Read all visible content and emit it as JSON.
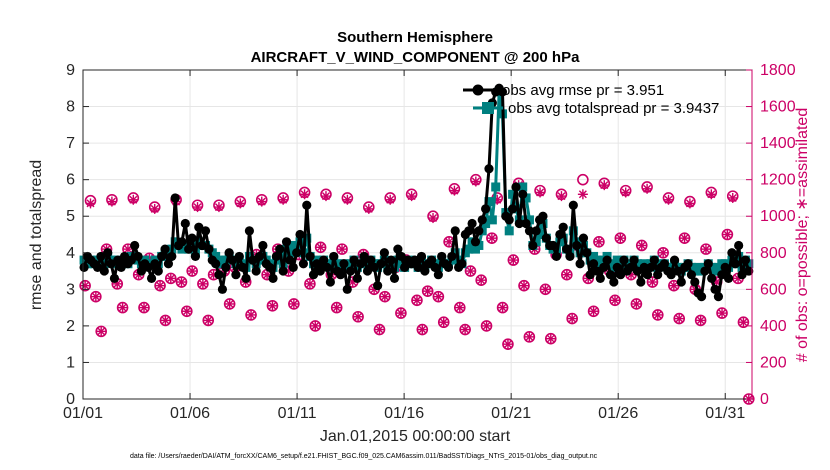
{
  "chart_data": {
    "type": "line",
    "title": "Southern Hemisphere",
    "subtitle": "AIRCRAFT_V_WIND_COMPONENT @ 200 hPa",
    "xlabel": "Jan.01,2015 00:00:00 start",
    "ylabel": "rmse and totalspread",
    "ylabel_right": "# of obs: o=possible; ∗=assimilated",
    "footnote": "data file: /Users/raeder/DAI/ATM_forcXX/CAM6_setup/f.e21.FHIST_BGC.f09_025.CAM6assim.011/BadSST/Diags_NTrS_2015-01/obs_diag_output.nc",
    "xlim": [
      1,
      32.25
    ],
    "ylim": [
      0,
      9
    ],
    "ylim_right": [
      0,
      1800
    ],
    "x_ticks": [
      1,
      6,
      11,
      16,
      21,
      26,
      31
    ],
    "x_tick_labels": [
      "01/01",
      "01/06",
      "01/11",
      "01/16",
      "01/21",
      "01/26",
      "01/31"
    ],
    "y_ticks": [
      "0",
      "1",
      "2",
      "3",
      "4",
      "5",
      "6",
      "7",
      "8",
      "9"
    ],
    "y_right_ticks": [
      "0",
      "200",
      "400",
      "600",
      "800",
      "1000",
      "1200",
      "1400",
      "1600",
      "1800"
    ],
    "grid": true,
    "legend_position": "top-right",
    "colors": {
      "rmse": "#000000",
      "spread": "#008080",
      "obs": "#cc0066",
      "axis": "#262626"
    },
    "series": [
      {
        "name": "obs avg rmse pr = 3.951",
        "color": "#000000",
        "marker": "circle",
        "values": [
          3.6,
          3.9,
          3.8,
          3.7,
          3.6,
          3.9,
          3.5,
          4.0,
          3.7,
          3.3,
          3.8,
          3.6,
          3.9,
          3.7,
          3.8,
          4.2,
          3.9,
          3.5,
          3.7,
          3.6,
          3.3,
          3.7,
          3.5,
          3.9,
          4.1,
          3.7,
          3.9,
          5.5,
          4.2,
          4.3,
          4.8,
          4.1,
          4.4,
          3.9,
          4.7,
          4.2,
          4.6,
          4.1,
          3.8,
          3.7,
          3.4,
          3.0,
          3.6,
          4.0,
          3.8,
          3.4,
          3.9,
          3.6,
          3.3,
          4.6,
          3.8,
          3.5,
          3.9,
          4.2,
          3.7,
          3.6,
          3.3,
          3.9,
          4.1,
          3.5,
          4.3,
          3.8,
          3.6,
          4.0,
          4.5,
          3.7,
          5.3,
          3.9,
          3.4,
          3.7,
          3.5,
          3.8,
          3.6,
          3.2,
          3.9,
          3.5,
          3.4,
          3.7,
          3.0,
          3.5,
          3.8,
          3.3,
          3.7,
          3.9,
          3.5,
          3.8,
          3.6,
          3.1,
          3.7,
          4.0,
          3.5,
          3.8,
          3.3,
          4.1,
          3.9,
          3.6,
          3.8,
          3.7,
          3.8,
          3.6,
          3.9,
          3.5,
          3.7,
          3.8,
          3.6,
          3.4,
          3.9,
          3.7,
          3.6,
          3.9,
          4.6,
          3.6,
          3.7,
          4.5,
          4.6,
          4.8,
          4.3,
          4.6,
          4.9,
          5.2,
          6.3,
          8.1,
          8.4,
          8.5,
          8.4,
          5.0,
          4.9,
          5.2,
          5.8,
          4.8,
          5.6,
          4.8,
          4.6,
          4.2,
          4.6,
          4.9,
          5.0,
          4.4,
          4.2,
          4.2,
          3.9,
          4.5,
          4.7,
          4.1,
          3.9,
          5.3,
          4.2,
          3.7,
          4.4,
          4.0,
          3.4,
          3.7,
          3.5,
          3.3,
          3.6,
          3.8,
          3.4,
          3.2,
          3.6,
          3.4,
          3.8,
          3.5,
          3.6,
          3.8,
          3.5,
          3.2,
          3.6,
          3.4,
          3.6,
          3.8,
          3.4,
          3.6,
          3.7,
          3.5,
          3.4,
          3.8,
          3.5,
          3.2,
          3.6,
          3.7,
          3.4,
          3.2,
          2.9,
          2.8,
          3.5,
          3.7,
          3.3,
          3.0,
          2.8,
          3.4,
          3.6,
          3.3,
          4.0,
          3.7,
          4.2,
          3.4,
          3.8,
          3.5
        ]
      },
      {
        "name": "obs avg totalspread pr = 3.9437",
        "color": "#008080",
        "marker": "square",
        "values": [
          3.8,
          3.7,
          3.8,
          3.7,
          3.8,
          3.8,
          3.7,
          3.9,
          3.8,
          3.7,
          3.8,
          3.7,
          3.8,
          3.7,
          3.9,
          3.9,
          3.8,
          3.7,
          3.8,
          3.7,
          3.7,
          3.8,
          3.7,
          3.9,
          4.0,
          3.9,
          4.1,
          4.3,
          4.2,
          4.1,
          4.2,
          4.1,
          4.2,
          4.0,
          4.3,
          4.2,
          4.2,
          4.1,
          4.0,
          3.9,
          3.8,
          3.7,
          3.8,
          3.9,
          3.8,
          3.7,
          3.8,
          3.7,
          3.6,
          3.9,
          3.8,
          3.7,
          3.8,
          3.9,
          3.8,
          3.7,
          3.6,
          3.8,
          3.9,
          3.7,
          4.1,
          4.0,
          4.2,
          4.1,
          4.3,
          4.0,
          4.4,
          3.9,
          3.7,
          3.8,
          3.7,
          3.8,
          3.7,
          3.6,
          3.8,
          3.7,
          3.6,
          3.7,
          3.6,
          3.7,
          3.8,
          3.6,
          3.7,
          3.8,
          3.7,
          3.8,
          3.7,
          3.6,
          3.7,
          3.8,
          3.6,
          3.7,
          3.6,
          3.8,
          3.7,
          3.6,
          3.7,
          3.8,
          3.7,
          3.6,
          3.8,
          3.6,
          3.7,
          3.8,
          3.7,
          3.6,
          3.8,
          3.7,
          3.7,
          3.8,
          4.0,
          3.8,
          3.7,
          4.0,
          4.1,
          4.3,
          4.1,
          4.2,
          4.6,
          4.8,
          5.4,
          4.9,
          5.8,
          8.4,
          7.8,
          5.1,
          4.6,
          5.6,
          5.2,
          4.9,
          5.8,
          5.5,
          4.9,
          4.2,
          4.3,
          4.5,
          4.8,
          4.4,
          4.2,
          4.1,
          4.1,
          4.3,
          4.4,
          4.1,
          4.0,
          4.6,
          4.3,
          4.0,
          4.2,
          4.0,
          3.8,
          3.9,
          3.8,
          3.7,
          3.8,
          3.9,
          3.7,
          3.6,
          3.8,
          3.7,
          3.8,
          3.7,
          3.7,
          3.8,
          3.7,
          3.6,
          3.7,
          3.6,
          3.7,
          3.8,
          3.6,
          3.7,
          3.7,
          3.6,
          3.6,
          3.7,
          3.6,
          3.5,
          3.6,
          3.7,
          3.6,
          3.5,
          3.6,
          3.5,
          3.6,
          3.7,
          3.6,
          3.5,
          3.6,
          3.7,
          3.7,
          3.6,
          3.8,
          3.7,
          3.9,
          3.6,
          3.8,
          3.7
        ]
      }
    ],
    "obs_counts": {
      "name": "# of obs",
      "color": "#cc0066",
      "possible_marker": "circle",
      "assimilated_marker": "asterisk",
      "x": [
        1.1,
        1.35,
        1.6,
        1.85,
        2.1,
        2.35,
        2.6,
        2.85,
        3.1,
        3.35,
        3.6,
        3.85,
        4.1,
        4.35,
        4.6,
        4.85,
        5.1,
        5.35,
        5.6,
        5.85,
        6.1,
        6.35,
        6.6,
        6.85,
        7.1,
        7.35,
        7.6,
        7.85,
        8.1,
        8.35,
        8.6,
        8.85,
        9.1,
        9.35,
        9.6,
        9.85,
        10.1,
        10.35,
        10.6,
        10.85,
        11.1,
        11.35,
        11.6,
        11.85,
        12.1,
        12.35,
        12.6,
        12.85,
        13.1,
        13.35,
        13.6,
        13.85,
        14.1,
        14.35,
        14.6,
        14.85,
        15.1,
        15.35,
        15.6,
        15.85,
        16.1,
        16.35,
        16.6,
        16.85,
        17.1,
        17.35,
        17.6,
        17.85,
        18.1,
        18.35,
        18.6,
        18.85,
        19.1,
        19.35,
        19.6,
        19.85,
        20.1,
        20.35,
        20.6,
        20.85,
        21.1,
        21.35,
        21.6,
        21.85,
        22.1,
        22.35,
        22.6,
        22.85,
        23.1,
        23.35,
        23.6,
        23.85,
        24.1,
        24.35,
        24.6,
        24.85,
        25.1,
        25.35,
        25.6,
        25.85,
        26.1,
        26.35,
        26.6,
        26.85,
        27.1,
        27.35,
        27.6,
        27.85,
        28.1,
        28.35,
        28.6,
        28.85,
        29.1,
        29.35,
        29.6,
        29.85,
        30.1,
        30.35,
        30.6,
        30.85,
        31.1,
        31.35,
        31.6,
        31.85,
        32.1
      ],
      "possible": [
        620,
        1085,
        560,
        370,
        820,
        1090,
        630,
        500,
        820,
        1100,
        680,
        500,
        770,
        1050,
        620,
        430,
        660,
        1090,
        640,
        480,
        700,
        1060,
        630,
        430,
        680,
        1060,
        700,
        520,
        720,
        1080,
        640,
        460,
        790,
        1090,
        680,
        510,
        820,
        1100,
        700,
        520,
        790,
        1130,
        630,
        400,
        830,
        1120,
        680,
        500,
        820,
        1100,
        640,
        450,
        790,
        1050,
        600,
        380,
        560,
        1100,
        720,
        470,
        760,
        1120,
        540,
        380,
        590,
        1000,
        560,
        420,
        860,
        1150,
        500,
        380,
        700,
        1200,
        650,
        400,
        880,
        1100,
        500,
        300,
        760,
        1180,
        620,
        340,
        820,
        1140,
        600,
        330,
        790,
        1120,
        680,
        440,
        840,
        1200,
        660,
        480,
        860,
        1180,
        700,
        540,
        880,
        1140,
        680,
        520,
        840,
        1160,
        640,
        460,
        800,
        1100,
        620,
        440,
        880,
        1080,
        600,
        430,
        820,
        1130,
        640,
        470,
        900,
        1110,
        660,
        420,
        0
      ],
      "assimilated": [
        620,
        1070,
        560,
        370,
        820,
        1080,
        630,
        500,
        820,
        1090,
        680,
        500,
        770,
        1040,
        620,
        430,
        660,
        1080,
        640,
        480,
        700,
        1050,
        630,
        430,
        680,
        1050,
        700,
        520,
        720,
        1070,
        640,
        460,
        790,
        1080,
        680,
        510,
        820,
        1090,
        700,
        520,
        790,
        1120,
        630,
        400,
        830,
        1110,
        680,
        500,
        820,
        1090,
        640,
        450,
        790,
        1040,
        600,
        380,
        560,
        1090,
        720,
        470,
        760,
        1110,
        540,
        380,
        590,
        990,
        560,
        420,
        860,
        1140,
        500,
        380,
        700,
        1190,
        650,
        400,
        880,
        1090,
        500,
        300,
        760,
        1170,
        620,
        340,
        820,
        1130,
        600,
        330,
        790,
        1110,
        680,
        440,
        840,
        1120,
        660,
        480,
        860,
        1170,
        700,
        540,
        880,
        1130,
        680,
        520,
        840,
        1150,
        640,
        460,
        800,
        1090,
        620,
        440,
        880,
        1070,
        600,
        430,
        820,
        1120,
        640,
        470,
        900,
        1100,
        660,
        420,
        0
      ]
    }
  }
}
